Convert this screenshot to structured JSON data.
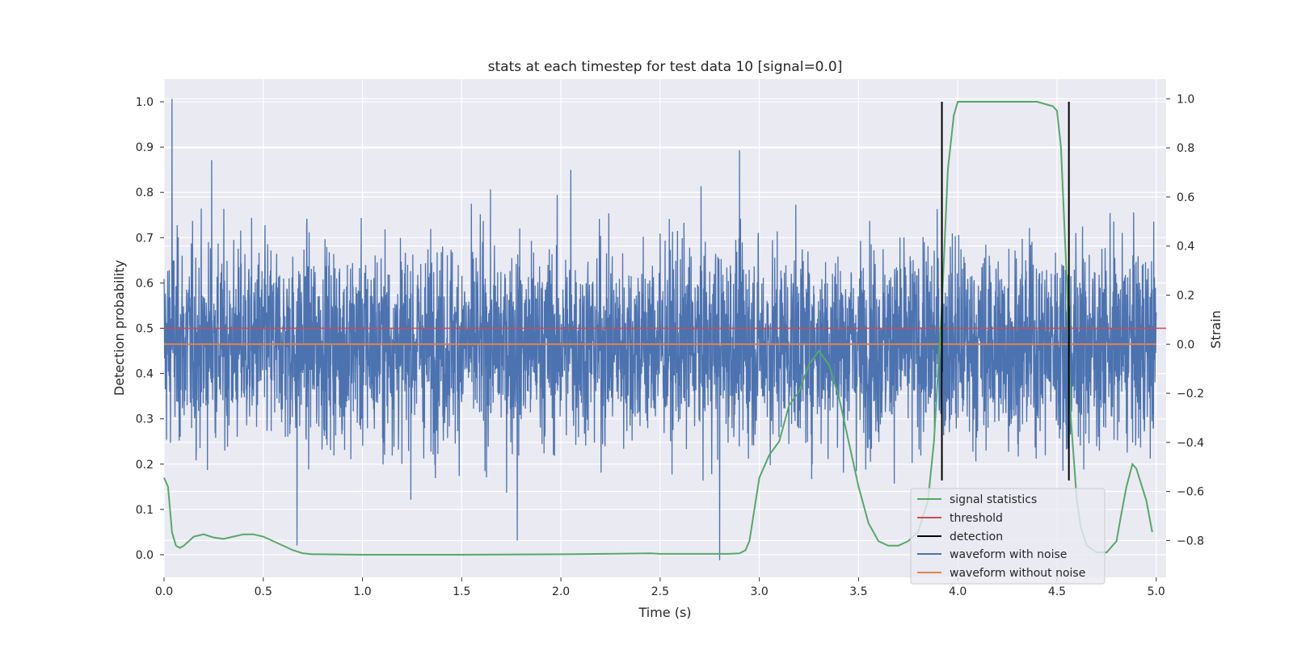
{
  "chart_data": {
    "type": "line",
    "title": "stats at each timestep for test data 10 [signal=0.0]",
    "xlabel": "Time (s)",
    "ylabel_left": "Detection probability",
    "ylabel_right": "Strain",
    "xlim": [
      0.0,
      5.05
    ],
    "ylim_left": [
      -0.05,
      1.05
    ],
    "ylim_right": [
      -0.95,
      1.08
    ],
    "xticks": [
      "0.0",
      "0.5",
      "1.0",
      "1.5",
      "2.0",
      "2.5",
      "3.0",
      "3.5",
      "4.0",
      "4.5",
      "5.0"
    ],
    "yticks_left": [
      "0.0",
      "0.1",
      "0.2",
      "0.3",
      "0.4",
      "0.5",
      "0.6",
      "0.7",
      "0.8",
      "0.9",
      "1.0"
    ],
    "yticks_right": [
      "−0.8",
      "−0.6",
      "−0.4",
      "−0.2",
      "0.0",
      "0.2",
      "0.4",
      "0.6",
      "0.8",
      "1.0"
    ],
    "grid": true,
    "legend_position": "bottom-right",
    "colors": {
      "signal": "#55a868",
      "threshold": "#c44e52",
      "detection": "#000000",
      "noisy": "#4c72b0",
      "clean": "#dd8452",
      "background": "#eaeaf2"
    },
    "series": [
      {
        "name": "signal statistics",
        "axis": "left",
        "x": [
          0.0,
          0.02,
          0.04,
          0.06,
          0.08,
          0.1,
          0.15,
          0.2,
          0.25,
          0.3,
          0.35,
          0.4,
          0.45,
          0.5,
          0.55,
          0.6,
          0.65,
          0.7,
          0.75,
          0.8,
          1.0,
          1.5,
          2.0,
          2.45,
          2.5,
          2.7,
          2.85,
          2.9,
          2.93,
          2.95,
          3.0,
          3.05,
          3.1,
          3.15,
          3.2,
          3.25,
          3.3,
          3.35,
          3.4,
          3.45,
          3.5,
          3.55,
          3.6,
          3.65,
          3.7,
          3.75,
          3.8,
          3.85,
          3.88,
          3.92,
          3.95,
          3.98,
          4.0,
          4.05,
          4.2,
          4.4,
          4.48,
          4.5,
          4.52,
          4.55,
          4.57,
          4.6,
          4.62,
          4.65,
          4.7,
          4.75,
          4.8,
          4.82,
          4.85,
          4.88,
          4.9,
          4.95,
          4.98
        ],
        "values": [
          0.17,
          0.15,
          0.05,
          0.02,
          0.015,
          0.02,
          0.04,
          0.045,
          0.038,
          0.035,
          0.04,
          0.045,
          0.045,
          0.04,
          0.03,
          0.02,
          0.01,
          0.003,
          0.001,
          0.001,
          0.0,
          0.0,
          0.001,
          0.003,
          0.002,
          0.002,
          0.002,
          0.003,
          0.01,
          0.03,
          0.17,
          0.22,
          0.25,
          0.33,
          0.36,
          0.42,
          0.45,
          0.42,
          0.35,
          0.25,
          0.15,
          0.07,
          0.03,
          0.02,
          0.02,
          0.03,
          0.05,
          0.12,
          0.25,
          0.55,
          0.85,
          0.97,
          1.0,
          1.0,
          1.0,
          1.0,
          0.99,
          0.98,
          0.9,
          0.6,
          0.3,
          0.12,
          0.06,
          0.02,
          0.005,
          0.005,
          0.03,
          0.08,
          0.15,
          0.2,
          0.19,
          0.12,
          0.05
        ]
      },
      {
        "name": "threshold",
        "axis": "left",
        "x": [
          0.0,
          5.05
        ],
        "values": [
          0.5,
          0.5
        ]
      },
      {
        "name": "detection",
        "axis": "left",
        "x": [
          3.92,
          4.56
        ],
        "values": [
          1.0,
          1.0
        ]
      },
      {
        "name": "waveform with noise",
        "axis": "right",
        "sampled_noise": true,
        "x_range": [
          0.0,
          5.0
        ],
        "value_range": [
          -0.9,
          1.0
        ],
        "spikes": [
          {
            "x": 0.04,
            "value": 1.0
          },
          {
            "x": 0.24,
            "value": 0.75
          },
          {
            "x": 2.9,
            "value": 0.79
          },
          {
            "x": 2.05,
            "value": 0.71
          },
          {
            "x": 2.8,
            "value": -0.88
          },
          {
            "x": 0.67,
            "value": -0.82
          },
          {
            "x": 1.78,
            "value": -0.8
          }
        ]
      },
      {
        "name": "waveform without noise",
        "axis": "right",
        "x": [
          0.0,
          5.0
        ],
        "values": [
          0.0,
          0.0
        ]
      }
    ]
  }
}
